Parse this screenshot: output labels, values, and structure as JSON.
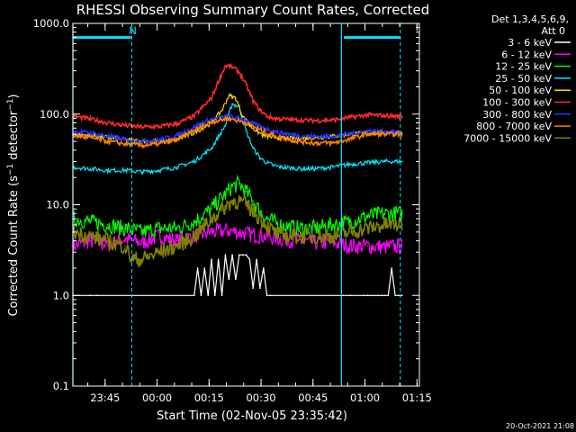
{
  "chart_data": {
    "type": "line",
    "title": "RHESSI Observing Summary Count Rates, Corrected",
    "xlabel": "Start Time (02-Nov-05 23:35:42)",
    "ylabel": "Corrected Count Rate (s⁻¹ detector⁻¹)",
    "y_scale": "log",
    "ylim": [
      0.1,
      1000.0
    ],
    "xlim_minutes": [
      0,
      100
    ],
    "x_tick_labels": [
      "23:45",
      "00:00",
      "00:15",
      "00:30",
      "00:45",
      "01:00",
      "01:15"
    ],
    "x_tick_minutes": [
      9.3,
      24.3,
      39.3,
      54.3,
      69.3,
      84.3,
      99.3
    ],
    "y_tick_labels": [
      "0.1",
      "1.0",
      "10.0",
      "100.0",
      "1000.0"
    ],
    "y_tick_values": [
      0.1,
      1,
      10,
      100,
      1000
    ],
    "legend_header": [
      "Det 1,3,4,5,6,9,",
      "Att 0"
    ],
    "annotations": [
      {
        "text": "N",
        "x_minute": 17.3,
        "y_value": 830
      }
    ],
    "footer_stamp": "20-Oct-2021 21:08",
    "vertical_markers": {
      "color": "#00e5ff",
      "solid_minutes": [
        0,
        77.5
      ],
      "dashed_minutes": [
        17.0,
        94.5
      ],
      "night_bars_minutes": [
        [
          0,
          16.8
        ],
        [
          78.2,
          94.5
        ]
      ],
      "night_bar_value": 700
    },
    "series": [
      {
        "name": "3 - 6 keV",
        "color": "#ffffff",
        "x": [
          0,
          5,
          7,
          35,
          36,
          37,
          38,
          39,
          40,
          41,
          42,
          43,
          44,
          45,
          46,
          47,
          48,
          49,
          50,
          51,
          52,
          53,
          54,
          55,
          56,
          57,
          78,
          80,
          84,
          85,
          86,
          87,
          88,
          89,
          90,
          91,
          92,
          93,
          94,
          95
        ],
        "y": [
          1.0,
          1.0,
          1.0,
          1.0,
          2.0,
          1.0,
          2.0,
          1.0,
          2.5,
          1.0,
          2.5,
          1.0,
          2.8,
          1.5,
          2.8,
          1.5,
          2.8,
          2.8,
          2.8,
          2.5,
          1.2,
          2.5,
          1.2,
          2.0,
          1.0,
          1.0,
          1.0,
          1.0,
          1.0,
          1.0,
          1.0,
          1.0,
          1.0,
          1.0,
          1.0,
          1.0,
          2.0,
          1.0,
          1.0,
          1.0
        ]
      },
      {
        "name": "6 - 12 keV",
        "color": "#ff00ff",
        "x": [
          0,
          5,
          10,
          15,
          20,
          25,
          30,
          35,
          40,
          45,
          50,
          55,
          60,
          65,
          70,
          75,
          80,
          85,
          90,
          95
        ],
        "y": [
          3.5,
          4.0,
          3.6,
          4.2,
          3.8,
          4.5,
          4.0,
          4.5,
          5.0,
          5.2,
          4.8,
          4.5,
          4.2,
          4.0,
          3.8,
          3.8,
          3.5,
          3.5,
          3.4,
          3.5
        ]
      },
      {
        "name": "12 - 25 keV",
        "color": "#00ff00",
        "x": [
          0,
          5,
          10,
          15,
          20,
          25,
          30,
          35,
          40,
          42,
          44,
          46,
          48,
          50,
          52,
          54,
          56,
          60,
          65,
          70,
          75,
          80,
          85,
          90,
          95
        ],
        "y": [
          7.0,
          6.5,
          6.0,
          5.5,
          5.0,
          5.5,
          5.5,
          6.5,
          9.0,
          11.0,
          13.0,
          16.0,
          17.0,
          14.0,
          11.0,
          8.5,
          7.0,
          6.0,
          5.5,
          5.5,
          6.0,
          6.5,
          7.5,
          8.0,
          8.0
        ]
      },
      {
        "name": "25 - 50 keV",
        "color": "#00e5ff",
        "x": [
          0,
          5,
          10,
          15,
          20,
          25,
          30,
          35,
          40,
          44,
          46,
          48,
          50,
          52,
          54,
          56,
          58,
          60,
          65,
          70,
          75,
          80,
          85,
          90,
          95
        ],
        "y": [
          26,
          25,
          24,
          24,
          23,
          24,
          26,
          30,
          42,
          75,
          130,
          120,
          65,
          42,
          33,
          29,
          27,
          26,
          25,
          25,
          26,
          28,
          29,
          30,
          30
        ]
      },
      {
        "name": "50 - 100 keV",
        "color": "#ffd400",
        "x": [
          0,
          5,
          10,
          15,
          20,
          25,
          30,
          35,
          40,
          43,
          45,
          47,
          49,
          51,
          53,
          55,
          58,
          60,
          65,
          70,
          75,
          80,
          85,
          90,
          95
        ],
        "y": [
          60,
          58,
          55,
          52,
          50,
          50,
          52,
          62,
          80,
          110,
          160,
          150,
          95,
          75,
          65,
          58,
          55,
          54,
          54,
          55,
          57,
          60,
          62,
          63,
          62
        ]
      },
      {
        "name": "100 - 300 keV",
        "color": "#ff2a2a",
        "x": [
          0,
          5,
          10,
          15,
          20,
          25,
          30,
          35,
          40,
          42,
          44,
          46,
          48,
          50,
          52,
          54,
          56,
          58,
          60,
          65,
          70,
          75,
          80,
          85,
          90,
          95
        ],
        "y": [
          95,
          88,
          80,
          75,
          72,
          73,
          78,
          95,
          150,
          230,
          340,
          330,
          290,
          210,
          140,
          110,
          95,
          90,
          88,
          86,
          85,
          86,
          92,
          98,
          96,
          94
        ]
      },
      {
        "name": "300 - 800 keV",
        "color": "#2233ff",
        "x": [
          0,
          5,
          10,
          15,
          20,
          25,
          30,
          35,
          40,
          45,
          50,
          55,
          60,
          65,
          70,
          75,
          80,
          85,
          90,
          95
        ],
        "y": [
          65,
          62,
          57,
          52,
          50,
          52,
          58,
          72,
          88,
          95,
          85,
          70,
          62,
          58,
          57,
          57,
          60,
          65,
          64,
          63
        ]
      },
      {
        "name": "800 - 7000 keV",
        "color": "#ff8000",
        "x": [
          0,
          5,
          10,
          15,
          20,
          25,
          30,
          35,
          40,
          45,
          50,
          55,
          60,
          65,
          70,
          75,
          80,
          85,
          90,
          95
        ],
        "y": [
          58,
          55,
          50,
          47,
          45,
          47,
          52,
          66,
          82,
          90,
          80,
          64,
          55,
          50,
          48,
          48,
          53,
          60,
          60,
          60
        ]
      },
      {
        "name": "7000 - 15000 keV",
        "color": "#808000",
        "x": [
          0,
          5,
          10,
          15,
          17,
          20,
          25,
          30,
          35,
          40,
          44,
          46,
          48,
          50,
          52,
          55,
          58,
          60,
          65,
          70,
          75,
          80,
          85,
          90,
          95
        ],
        "y": [
          5.0,
          4.5,
          4.0,
          3.5,
          2.5,
          2.5,
          3.0,
          3.5,
          4.5,
          7.0,
          9.5,
          11.0,
          11.0,
          10.0,
          8.5,
          6.5,
          5.0,
          4.5,
          4.5,
          4.5,
          4.5,
          5.0,
          5.5,
          6.0,
          6.0
        ]
      }
    ]
  }
}
